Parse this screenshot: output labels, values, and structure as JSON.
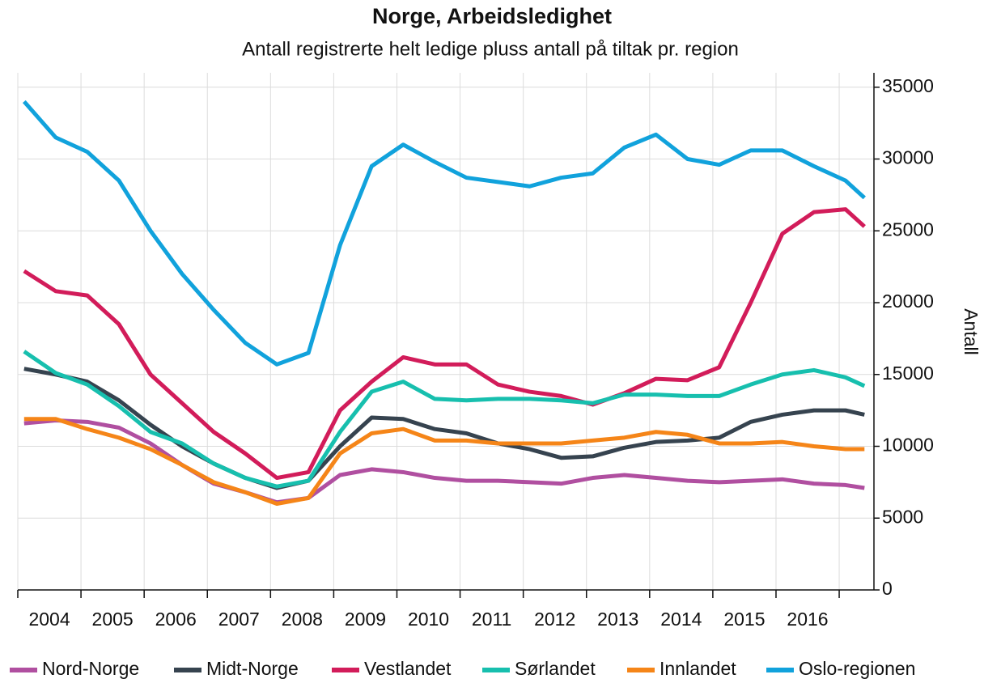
{
  "chart_data": {
    "type": "line",
    "title": "Norge, Arbeidsledighet",
    "subtitle": "Antall registrerte helt ledige pluss antall på tiltak pr. region",
    "y_label": "Antall",
    "x": [
      2004.1,
      2004.6,
      2005.1,
      2005.6,
      2006.1,
      2006.6,
      2007.1,
      2007.6,
      2008.1,
      2008.6,
      2009.1,
      2009.6,
      2010.1,
      2010.6,
      2011.1,
      2011.6,
      2012.1,
      2012.6,
      2013.1,
      2013.6,
      2014.1,
      2014.6,
      2015.1,
      2015.6,
      2016.1,
      2016.6,
      2017.1,
      2017.4
    ],
    "series": [
      {
        "name": "Nord-Norge",
        "color": "#b04fa0",
        "values": [
          11600,
          11800,
          11700,
          11300,
          10200,
          8700,
          7400,
          6800,
          6100,
          6400,
          8000,
          8400,
          8200,
          7800,
          7600,
          7600,
          7500,
          7400,
          7800,
          8000,
          7800,
          7600,
          7500,
          7600,
          7700,
          7400,
          7300,
          7100
        ]
      },
      {
        "name": "Midt-Norge",
        "color": "#36434f",
        "values": [
          15400,
          15000,
          14500,
          13200,
          11500,
          10000,
          8800,
          7800,
          7100,
          7600,
          10000,
          12000,
          11900,
          11200,
          10900,
          10200,
          9800,
          9200,
          9300,
          9900,
          10300,
          10400,
          10600,
          11700,
          12200,
          12500,
          12500,
          12200
        ]
      },
      {
        "name": "Vestlandet",
        "color": "#d21c5a",
        "values": [
          22200,
          20800,
          20500,
          18500,
          15000,
          13000,
          11000,
          9500,
          7800,
          8200,
          12500,
          14500,
          16200,
          15700,
          15700,
          14300,
          13800,
          13500,
          12900,
          13700,
          14700,
          14600,
          15500,
          20000,
          24800,
          26300,
          26500,
          25300
        ]
      },
      {
        "name": "Sørlandet",
        "color": "#17bfae",
        "values": [
          16600,
          15100,
          14300,
          12800,
          11000,
          10200,
          8800,
          7800,
          7200,
          7600,
          11000,
          13800,
          14500,
          13300,
          13200,
          13300,
          13300,
          13200,
          13000,
          13600,
          13600,
          13500,
          13500,
          14300,
          15000,
          15300,
          14800,
          14200
        ]
      },
      {
        "name": "Innlandet",
        "color": "#f58518",
        "values": [
          11900,
          11900,
          11200,
          10600,
          9800,
          8700,
          7500,
          6800,
          6000,
          6400,
          9500,
          10900,
          11200,
          10400,
          10400,
          10200,
          10200,
          10200,
          10400,
          10600,
          11000,
          10800,
          10200,
          10200,
          10300,
          10000,
          9800,
          9800
        ]
      },
      {
        "name": "Oslo-regionen",
        "color": "#11a2dc",
        "values": [
          34000,
          31500,
          30500,
          28500,
          25000,
          22000,
          19500,
          17200,
          15700,
          16500,
          24000,
          29500,
          31000,
          29800,
          28700,
          28400,
          28100,
          28700,
          29000,
          30800,
          31700,
          30000,
          29600,
          30600,
          30600,
          29500,
          28500,
          27300
        ]
      }
    ],
    "xlim": [
      2004,
      2017.55
    ],
    "xticks": [
      {
        "value": 2004,
        "label": "2004"
      },
      {
        "value": 2005,
        "label": "2005"
      },
      {
        "value": 2006,
        "label": "2006"
      },
      {
        "value": 2007,
        "label": "2007"
      },
      {
        "value": 2008,
        "label": "2008"
      },
      {
        "value": 2009,
        "label": "2009"
      },
      {
        "value": 2010,
        "label": "2010"
      },
      {
        "value": 2011,
        "label": "2011"
      },
      {
        "value": 2012,
        "label": "2012"
      },
      {
        "value": 2013,
        "label": "2013"
      },
      {
        "value": 2014,
        "label": "2014"
      },
      {
        "value": 2015,
        "label": "2015"
      },
      {
        "value": 2016,
        "label": "2016"
      },
      {
        "value": 2017,
        "label": null
      }
    ],
    "ylim": [
      0,
      36000
    ],
    "yticks": [
      0,
      5000,
      10000,
      15000,
      20000,
      25000,
      30000,
      35000
    ],
    "grid": true,
    "legend": "bottom"
  }
}
